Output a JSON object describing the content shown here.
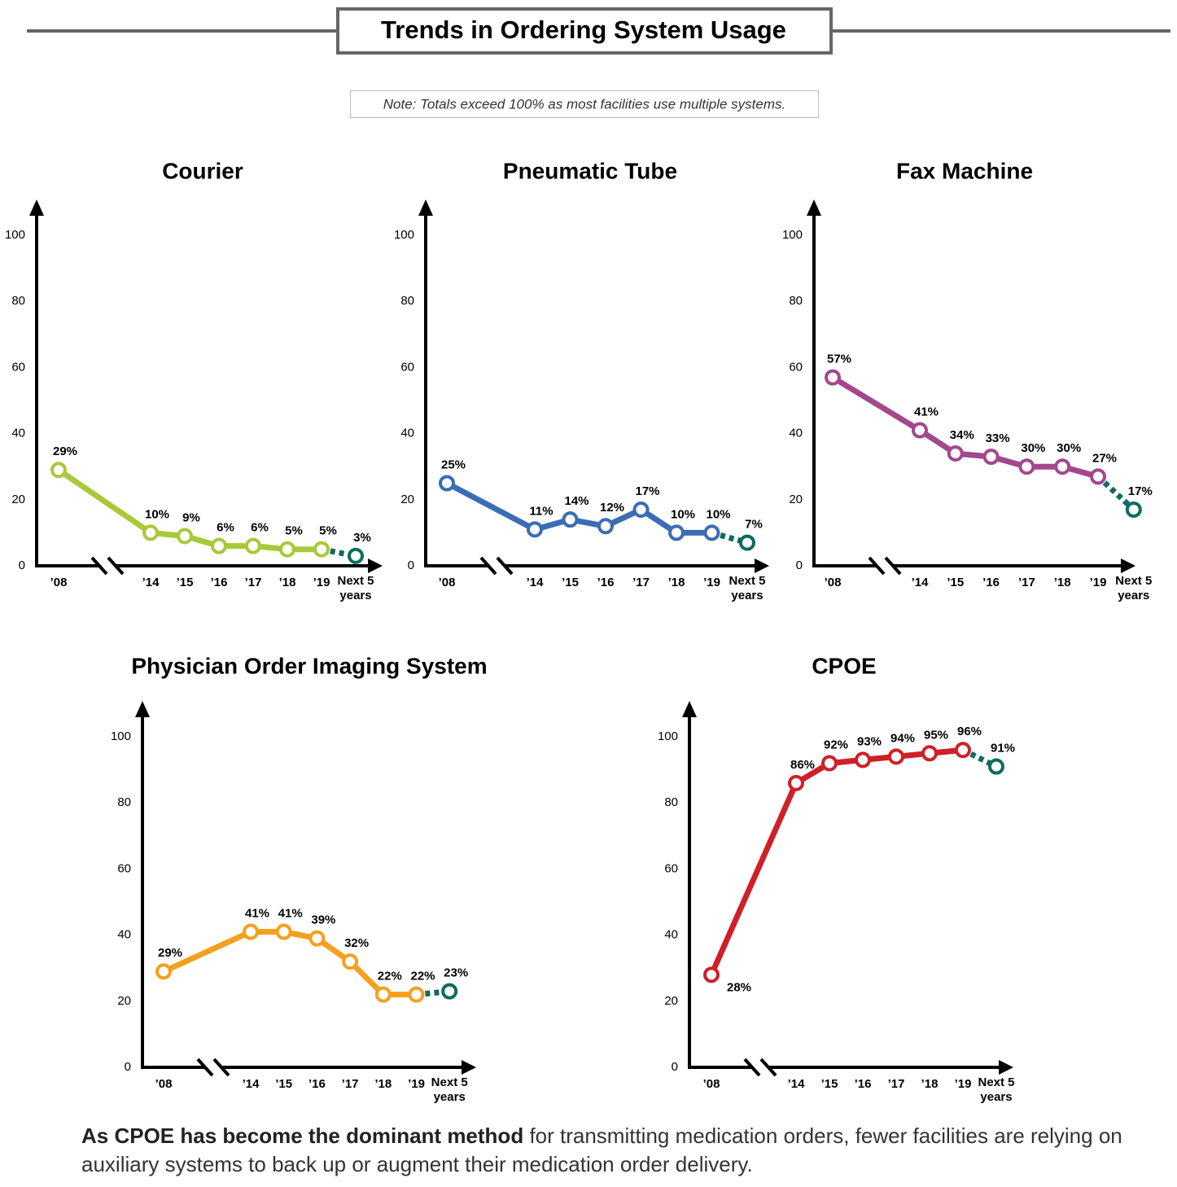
{
  "title": "Trends in Ordering System Usage",
  "note": "Note: Totals exceed 100% as most facilities use multiple systems.",
  "caption": {
    "bold": "As CPOE has become the dominant method",
    "rest": "for transmitting medication orders, fewer facilities are relying on auxiliary systems to back up or augment their medication order delivery."
  },
  "chart_data": [
    {
      "type": "line",
      "title": "Courier",
      "categories": [
        "’08",
        "’14",
        "’15",
        "’16",
        "’17",
        "’18",
        "’19",
        "Next 5 years"
      ],
      "values": [
        29,
        10,
        9,
        6,
        6,
        5,
        5,
        3
      ],
      "value_labels": [
        "29%",
        "10%",
        "9%",
        "6%",
        "6%",
        "5%",
        "5%",
        "3%"
      ],
      "color": "#a8c93a",
      "forecast_color": "#0f6b5e",
      "ylim": [
        0,
        100
      ],
      "yticks": [
        0,
        20,
        40,
        60,
        80,
        100
      ]
    },
    {
      "type": "line",
      "title": "Pneumatic Tube",
      "categories": [
        "’08",
        "’14",
        "’15",
        "’16",
        "’17",
        "’18",
        "’19",
        "Next 5 years"
      ],
      "values": [
        25,
        11,
        14,
        12,
        17,
        10,
        10,
        7
      ],
      "value_labels": [
        "25%",
        "11%",
        "14%",
        "12%",
        "17%",
        "10%",
        "10%",
        "7%"
      ],
      "color": "#3b6db5",
      "forecast_color": "#0f6b5e",
      "ylim": [
        0,
        100
      ],
      "yticks": [
        0,
        20,
        40,
        60,
        80,
        100
      ]
    },
    {
      "type": "line",
      "title": "Fax Machine",
      "categories": [
        "’08",
        "’14",
        "’15",
        "’16",
        "’17",
        "’18",
        "’19",
        "Next 5 years"
      ],
      "values": [
        57,
        41,
        34,
        33,
        30,
        30,
        27,
        17
      ],
      "value_labels": [
        "57%",
        "41%",
        "34%",
        "33%",
        "30%",
        "30%",
        "27%",
        "17%"
      ],
      "color": "#a3478f",
      "forecast_color": "#0f6b5e",
      "ylim": [
        0,
        100
      ],
      "yticks": [
        0,
        20,
        40,
        60,
        80,
        100
      ]
    },
    {
      "type": "line",
      "title": "Physician Order Imaging System",
      "categories": [
        "’08",
        "’14",
        "’15",
        "’16",
        "’17",
        "’18",
        "’19",
        "Next 5 years"
      ],
      "values": [
        29,
        41,
        41,
        39,
        32,
        22,
        22,
        23
      ],
      "value_labels": [
        "29%",
        "41%",
        "41%",
        "39%",
        "32%",
        "22%",
        "22%",
        "23%"
      ],
      "color": "#f5a01e",
      "forecast_color": "#0f6b5e",
      "ylim": [
        0,
        100
      ],
      "yticks": [
        0,
        20,
        40,
        60,
        80,
        100
      ]
    },
    {
      "type": "line",
      "title": "CPOE",
      "categories": [
        "’08",
        "’14",
        "’15",
        "’16",
        "’17",
        "’18",
        "’19",
        "Next 5 years"
      ],
      "values": [
        28,
        86,
        92,
        93,
        94,
        95,
        96,
        91
      ],
      "value_labels": [
        "28%",
        "86%",
        "92%",
        "93%",
        "94%",
        "95%",
        "96%",
        "91%"
      ],
      "color": "#cf2027",
      "forecast_color": "#0f6b5e",
      "ylim": [
        0,
        100
      ],
      "yticks": [
        0,
        20,
        40,
        60,
        80,
        100
      ]
    }
  ]
}
